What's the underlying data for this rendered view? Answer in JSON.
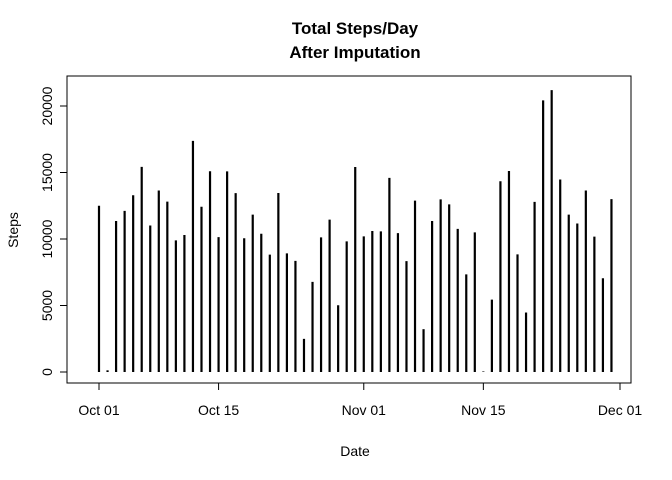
{
  "chart_data": {
    "type": "bar",
    "title": [
      "Total Steps/Day",
      "After Imputation"
    ],
    "xlabel": "Date",
    "ylabel": "Steps",
    "ylim": [
      0,
      21500
    ],
    "yticks": [
      0,
      5000,
      10000,
      15000,
      20000
    ],
    "xlim": [
      "2012-09-30",
      "2012-12-01"
    ],
    "xticks": [
      {
        "date": "2012-10-01",
        "label": "Oct 01"
      },
      {
        "date": "2012-10-15",
        "label": "Oct 15"
      },
      {
        "date": "2012-11-01",
        "label": "Nov 01"
      },
      {
        "date": "2012-11-15",
        "label": "Nov 15"
      },
      {
        "date": "2012-12-01",
        "label": "Dec 01"
      }
    ],
    "grid": false,
    "dates": [
      "2012-10-01",
      "2012-10-02",
      "2012-10-03",
      "2012-10-04",
      "2012-10-05",
      "2012-10-06",
      "2012-10-07",
      "2012-10-08",
      "2012-10-09",
      "2012-10-10",
      "2012-10-11",
      "2012-10-12",
      "2012-10-13",
      "2012-10-14",
      "2012-10-15",
      "2012-10-16",
      "2012-10-17",
      "2012-10-18",
      "2012-10-19",
      "2012-10-20",
      "2012-10-21",
      "2012-10-22",
      "2012-10-23",
      "2012-10-24",
      "2012-10-25",
      "2012-10-26",
      "2012-10-27",
      "2012-10-28",
      "2012-10-29",
      "2012-10-30",
      "2012-10-31",
      "2012-11-01",
      "2012-11-02",
      "2012-11-03",
      "2012-11-04",
      "2012-11-05",
      "2012-11-06",
      "2012-11-07",
      "2012-11-08",
      "2012-11-09",
      "2012-11-10",
      "2012-11-11",
      "2012-11-12",
      "2012-11-13",
      "2012-11-14",
      "2012-11-15",
      "2012-11-16",
      "2012-11-17",
      "2012-11-18",
      "2012-11-19",
      "2012-11-20",
      "2012-11-21",
      "2012-11-22",
      "2012-11-23",
      "2012-11-24",
      "2012-11-25",
      "2012-11-26",
      "2012-11-27",
      "2012-11-28",
      "2012-11-29",
      "2012-11-30"
    ],
    "values": [
      12500,
      126,
      11352,
      12116,
      13294,
      15420,
      11015,
      13650,
      12811,
      9900,
      10304,
      17382,
      12426,
      15098,
      10139,
      15084,
      13452,
      10056,
      11829,
      10395,
      8821,
      13460,
      8918,
      8355,
      2492,
      6778,
      10119,
      11458,
      5018,
      9819,
      15414,
      10200,
      10600,
      10571,
      14600,
      10439,
      8334,
      12883,
      3219,
      11350,
      12980,
      12608,
      10765,
      7336,
      10500,
      41,
      5441,
      14339,
      15110,
      8841,
      4472,
      12787,
      20427,
      21194,
      14478,
      11834,
      11162,
      13646,
      10183,
      7047,
      13000
    ]
  }
}
